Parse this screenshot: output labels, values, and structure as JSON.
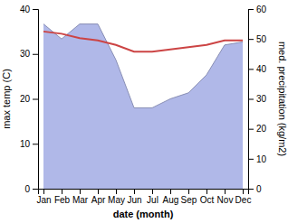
{
  "chart_data": {
    "type": "line",
    "x_label": "date (month)",
    "y_label": "max temp (C)",
    "y2_label": "med. precipitation (kg/m2)",
    "categories": [
      "Jan",
      "Feb",
      "Mar",
      "Apr",
      "May",
      "Jun",
      "Jul",
      "Aug",
      "Sep",
      "Oct",
      "Nov",
      "Dec"
    ],
    "series": [
      {
        "type": "line",
        "color": "#cc4444",
        "values": [
          35.0,
          34.5,
          33.5,
          33.0,
          32.0,
          30.5,
          30.5,
          31.0,
          31.5,
          32.0,
          33.0,
          33.0
        ]
      },
      {
        "type": "area",
        "axis": "y2",
        "color": "#b0b8e8",
        "values": [
          55.0,
          50.0,
          55.0,
          55.0,
          43.0,
          27.0,
          27.0,
          30.0,
          32.0,
          38.0,
          48.0,
          49.0
        ]
      }
    ],
    "ylim": [
      0,
      40
    ],
    "yticks": [
      0,
      10,
      20,
      30,
      40
    ],
    "y2lim": [
      0,
      60
    ],
    "y2ticks": [
      0,
      10,
      20,
      30,
      40,
      50,
      60
    ],
    "grid": false
  }
}
